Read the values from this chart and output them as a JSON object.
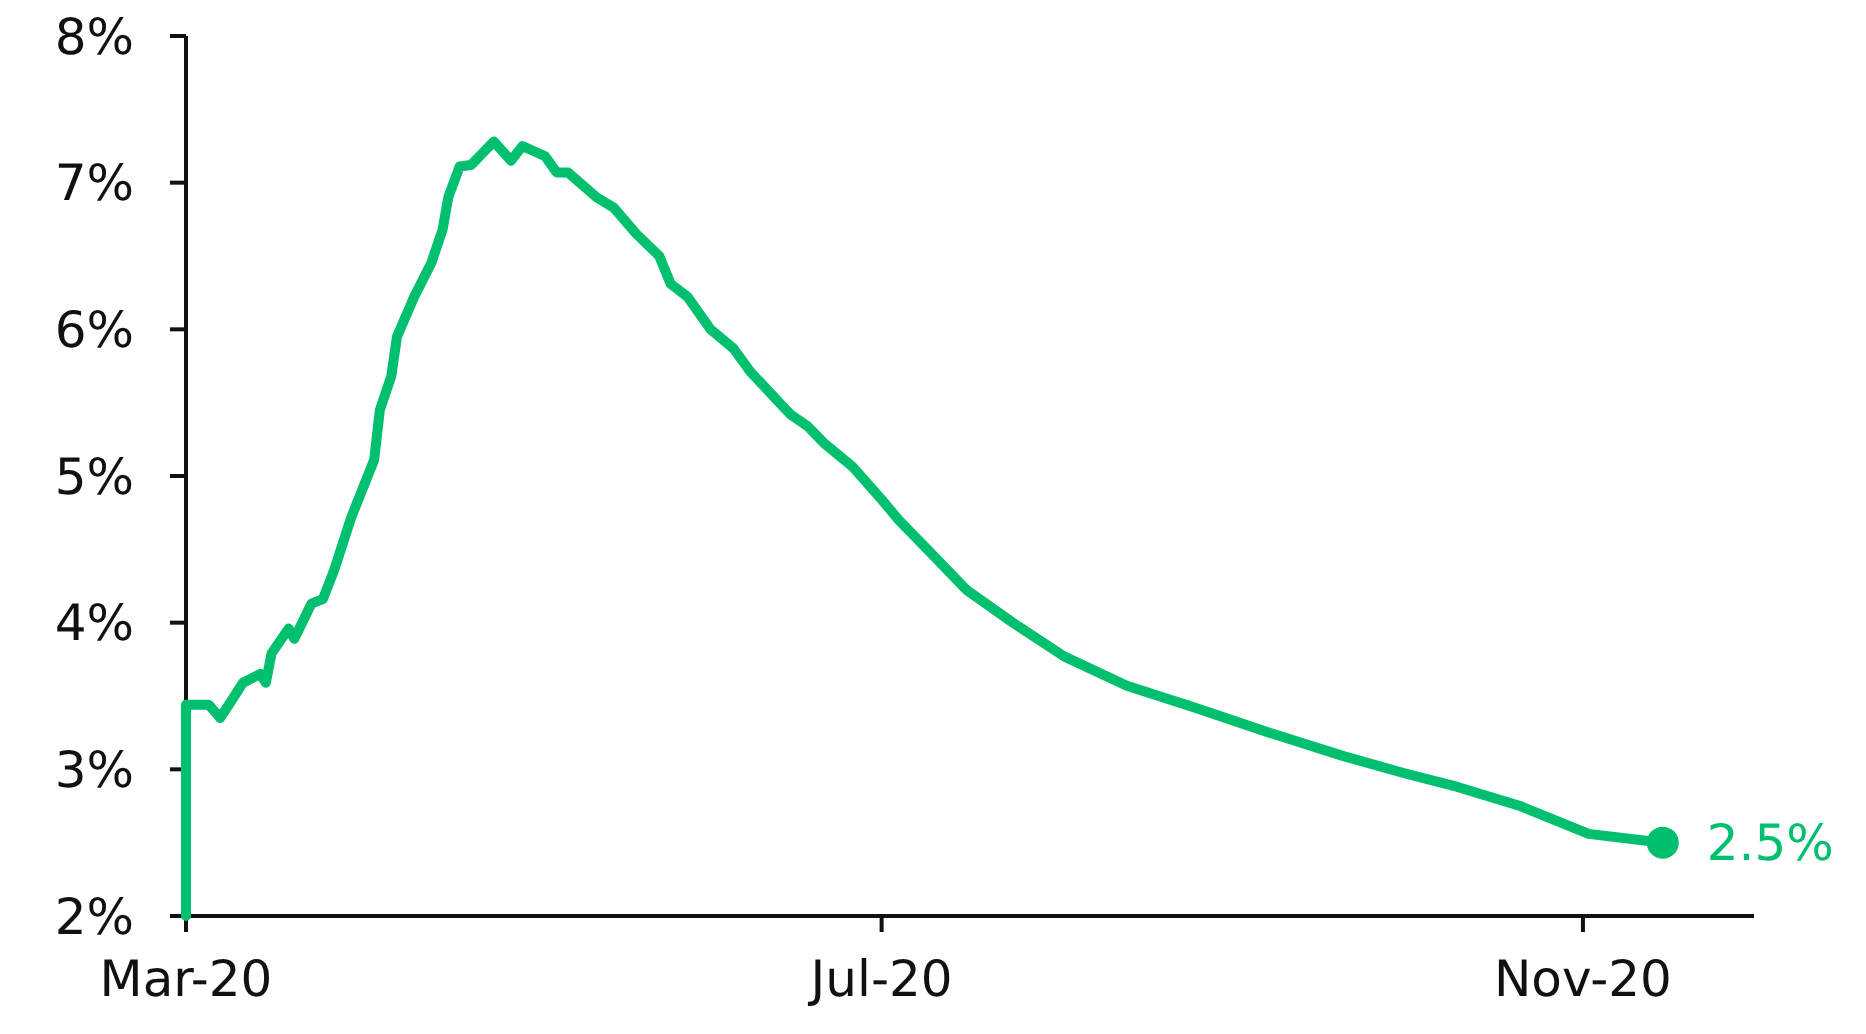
{
  "chart_data": {
    "type": "line",
    "x": [
      "2020-03-01",
      "2020-03-01",
      "2020-03-05",
      "2020-03-07",
      "2020-03-11",
      "2020-03-14",
      "2020-03-15",
      "2020-03-16",
      "2020-03-19",
      "2020-03-20",
      "2020-03-23",
      "2020-03-25",
      "2020-03-27",
      "2020-03-30",
      "2020-04-03",
      "2020-04-04",
      "2020-04-06",
      "2020-04-07",
      "2020-04-10",
      "2020-04-13",
      "2020-04-15",
      "2020-04-16",
      "2020-04-18",
      "2020-04-20",
      "2020-04-24",
      "2020-04-27",
      "2020-04-29",
      "2020-05-03",
      "2020-05-05",
      "2020-05-07",
      "2020-05-12",
      "2020-05-15",
      "2020-05-19",
      "2020-05-23",
      "2020-05-25",
      "2020-05-28",
      "2020-06-01",
      "2020-06-05",
      "2020-06-08",
      "2020-06-15",
      "2020-06-18",
      "2020-06-21",
      "2020-06-26",
      "2020-07-01",
      "2020-07-04",
      "2020-07-09",
      "2020-07-16",
      "2020-07-24",
      "2020-08-02",
      "2020-08-13",
      "2020-08-25",
      "2020-09-07",
      "2020-09-20",
      "2020-10-01",
      "2020-10-10",
      "2020-10-21",
      "2020-11-02",
      "2020-11-15"
    ],
    "series": [
      {
        "color": "#00bf6f",
        "values": [
          2.0,
          3.44,
          3.44,
          3.35,
          3.59,
          3.65,
          3.59,
          3.79,
          3.96,
          3.89,
          4.13,
          4.16,
          4.36,
          4.72,
          5.11,
          5.45,
          5.68,
          5.95,
          6.22,
          6.45,
          6.68,
          6.9,
          7.11,
          7.12,
          7.28,
          7.15,
          7.25,
          7.18,
          7.07,
          7.07,
          6.9,
          6.83,
          6.65,
          6.5,
          6.31,
          6.22,
          6.0,
          5.87,
          5.71,
          5.42,
          5.34,
          5.22,
          5.06,
          4.84,
          4.7,
          4.5,
          4.22,
          4.0,
          3.77,
          3.57,
          3.42,
          3.25,
          3.09,
          2.97,
          2.88,
          2.75,
          2.56,
          2.5
        ],
        "value_labels": [
          null,
          null,
          null,
          null,
          null,
          null,
          null,
          null,
          null,
          null,
          null,
          null,
          null,
          null,
          null,
          null,
          null,
          null,
          null,
          null,
          null,
          null,
          null,
          null,
          null,
          null,
          null,
          null,
          null,
          null,
          null,
          null,
          null,
          null,
          null,
          null,
          null,
          null,
          null,
          null,
          null,
          null,
          null,
          null,
          null,
          null,
          null,
          null,
          null,
          null,
          null,
          null,
          null,
          null,
          null,
          null,
          null,
          "2.5%"
        ]
      }
    ],
    "xlim": [
      "2020-03-01",
      "2020-12-01"
    ],
    "xticks": [
      {
        "value": "2020-03-01",
        "label": "Mar-20"
      },
      {
        "value": "2020-07-01",
        "label": "Jul-20"
      },
      {
        "value": "2020-11-01",
        "label": "Nov-20"
      }
    ],
    "ylim": [
      2,
      8
    ],
    "yticks": [
      {
        "value": 2,
        "label": "2%"
      },
      {
        "value": 3,
        "label": "3%"
      },
      {
        "value": 4,
        "label": "4%"
      },
      {
        "value": 5,
        "label": "5%"
      },
      {
        "value": 6,
        "label": "6%"
      },
      {
        "value": 7,
        "label": "7%"
      },
      {
        "value": 8,
        "label": "8%"
      }
    ],
    "grid": false,
    "marker": "none",
    "line_style": "solid"
  }
}
